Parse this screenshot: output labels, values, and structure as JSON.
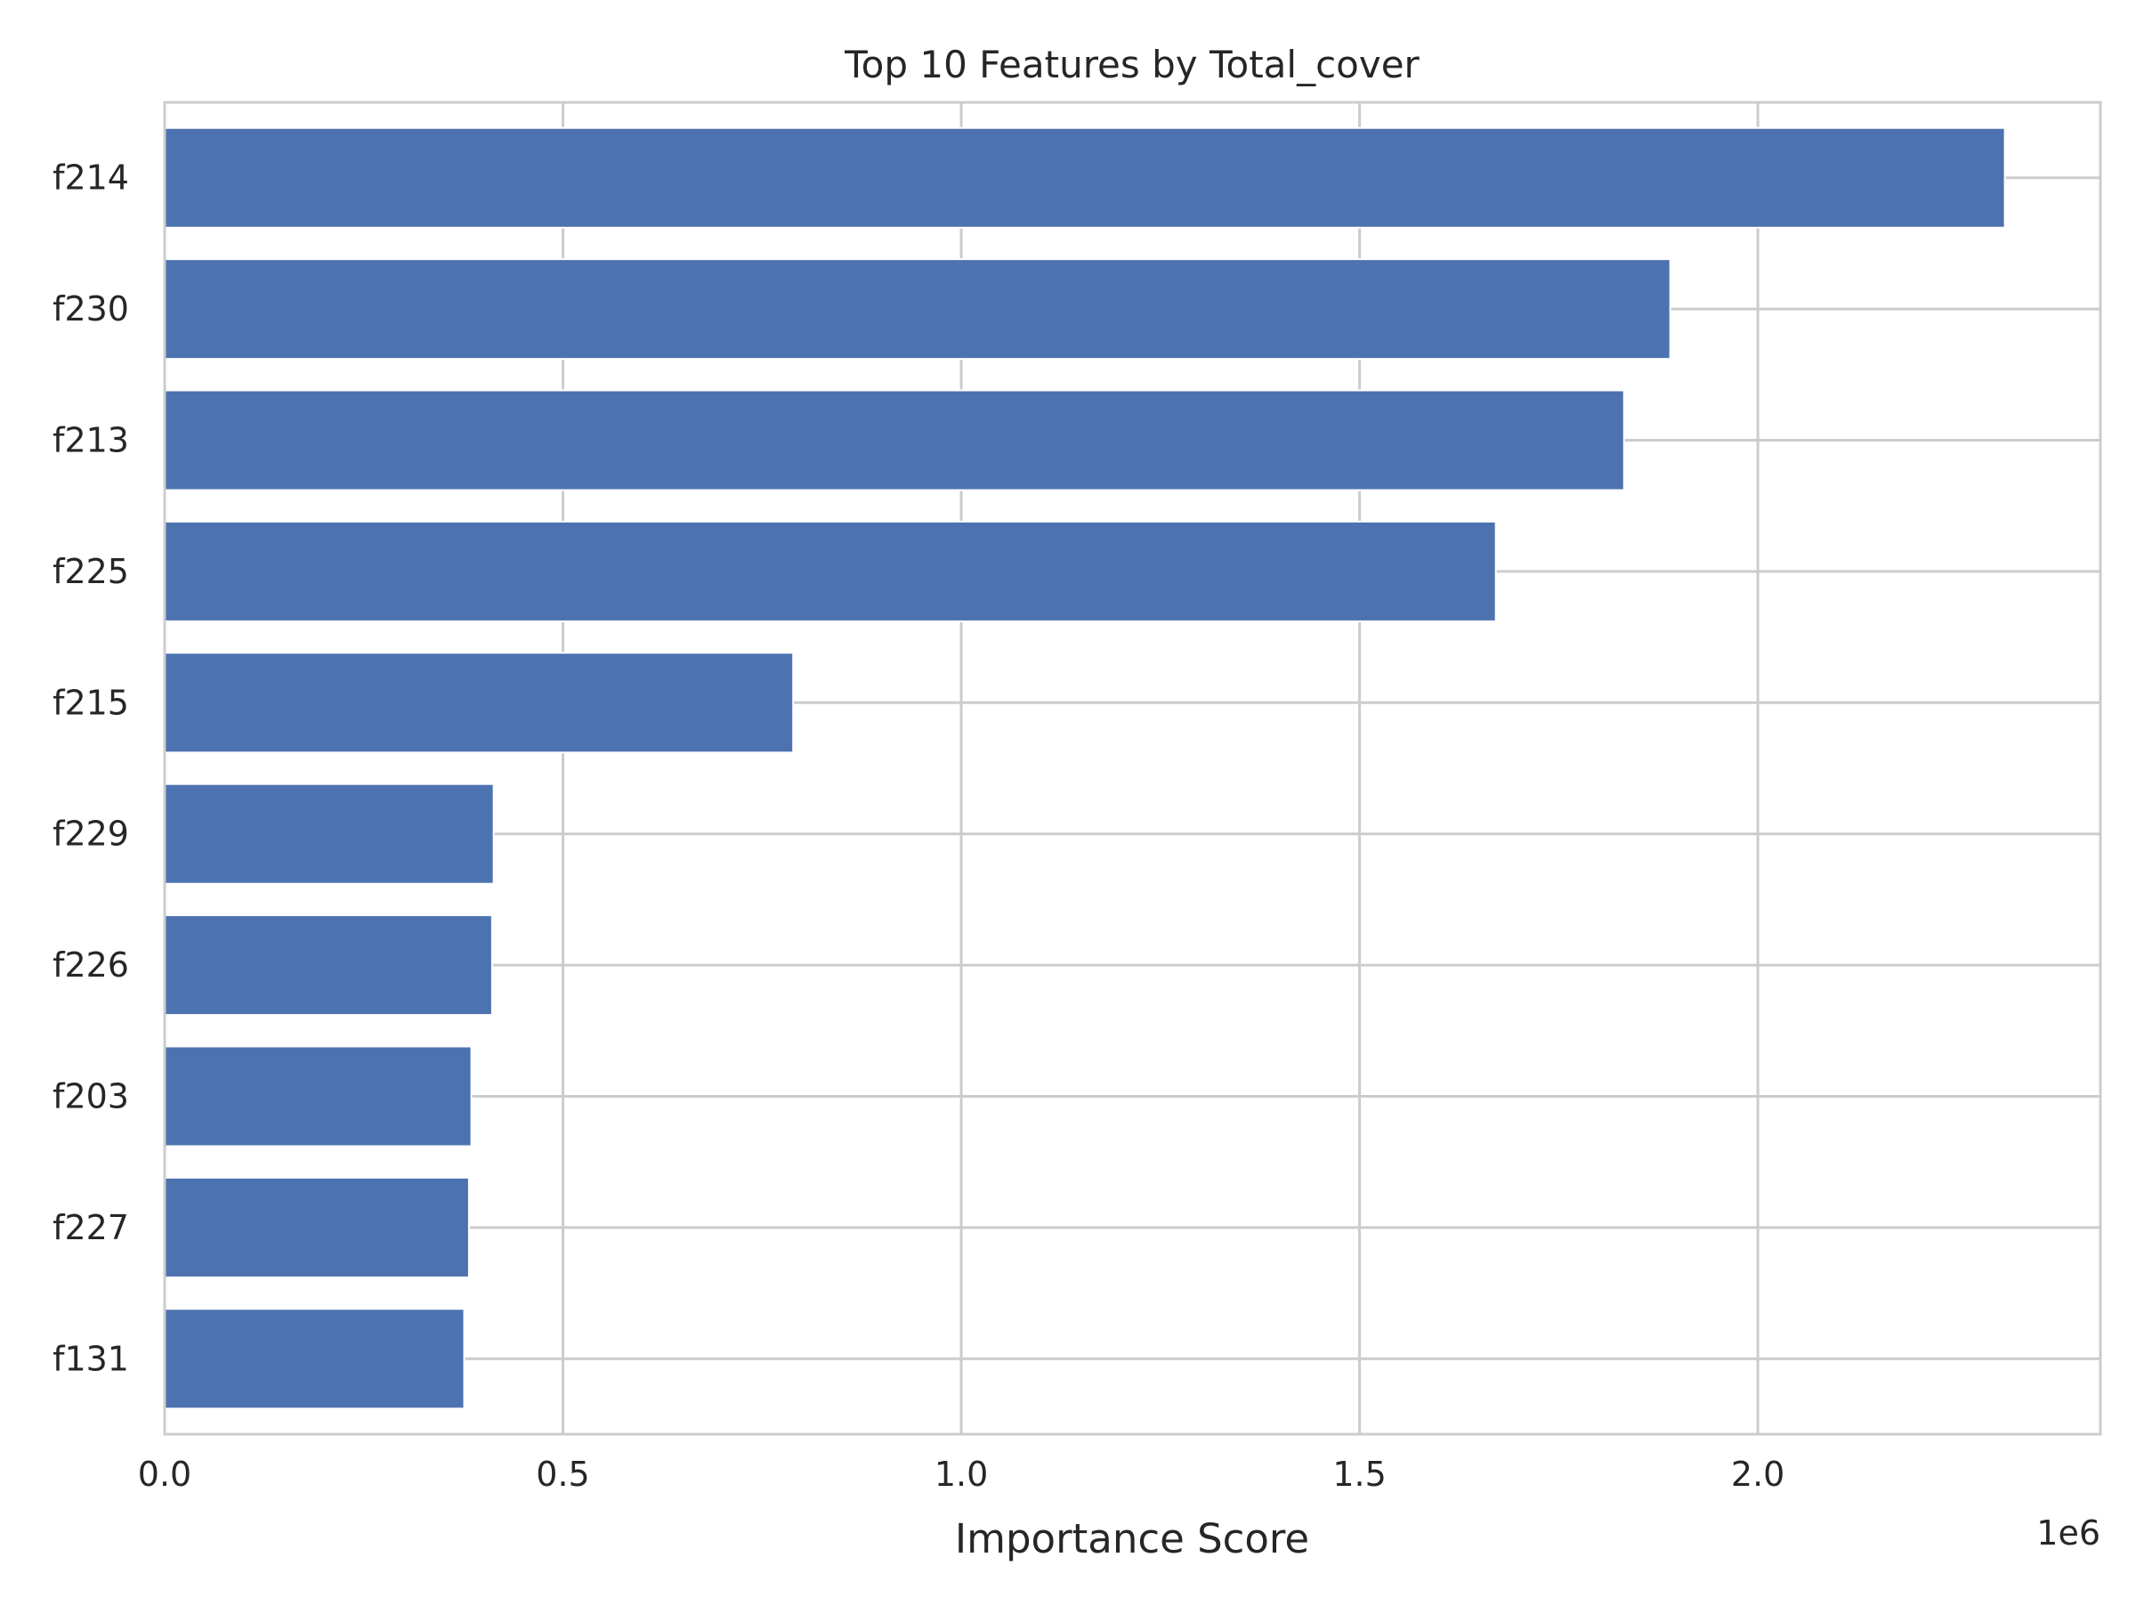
{
  "chart_data": {
    "type": "bar",
    "orientation": "horizontal",
    "title": "Top 10 Features by Total_cover",
    "xlabel": "Importance Score",
    "ylabel": "",
    "x_offset_text": "1e6",
    "categories": [
      "f214",
      "f230",
      "f213",
      "f225",
      "f215",
      "f229",
      "f226",
      "f203",
      "f227",
      "f131"
    ],
    "values": [
      2310000,
      1890000,
      1832000,
      1671000,
      789000,
      413000,
      411000,
      385000,
      382000,
      376000
    ],
    "xlim": [
      0,
      2430000
    ],
    "xticks": [
      0,
      500000,
      1000000,
      1500000,
      2000000
    ],
    "xtick_labels": [
      "0.0",
      "0.5",
      "1.0",
      "1.5",
      "2.0"
    ],
    "grid": true,
    "colors": {
      "bar": "#4c72b0",
      "grid": "#cccccc",
      "axes_edge": "#cccccc",
      "text": "#262626"
    }
  }
}
